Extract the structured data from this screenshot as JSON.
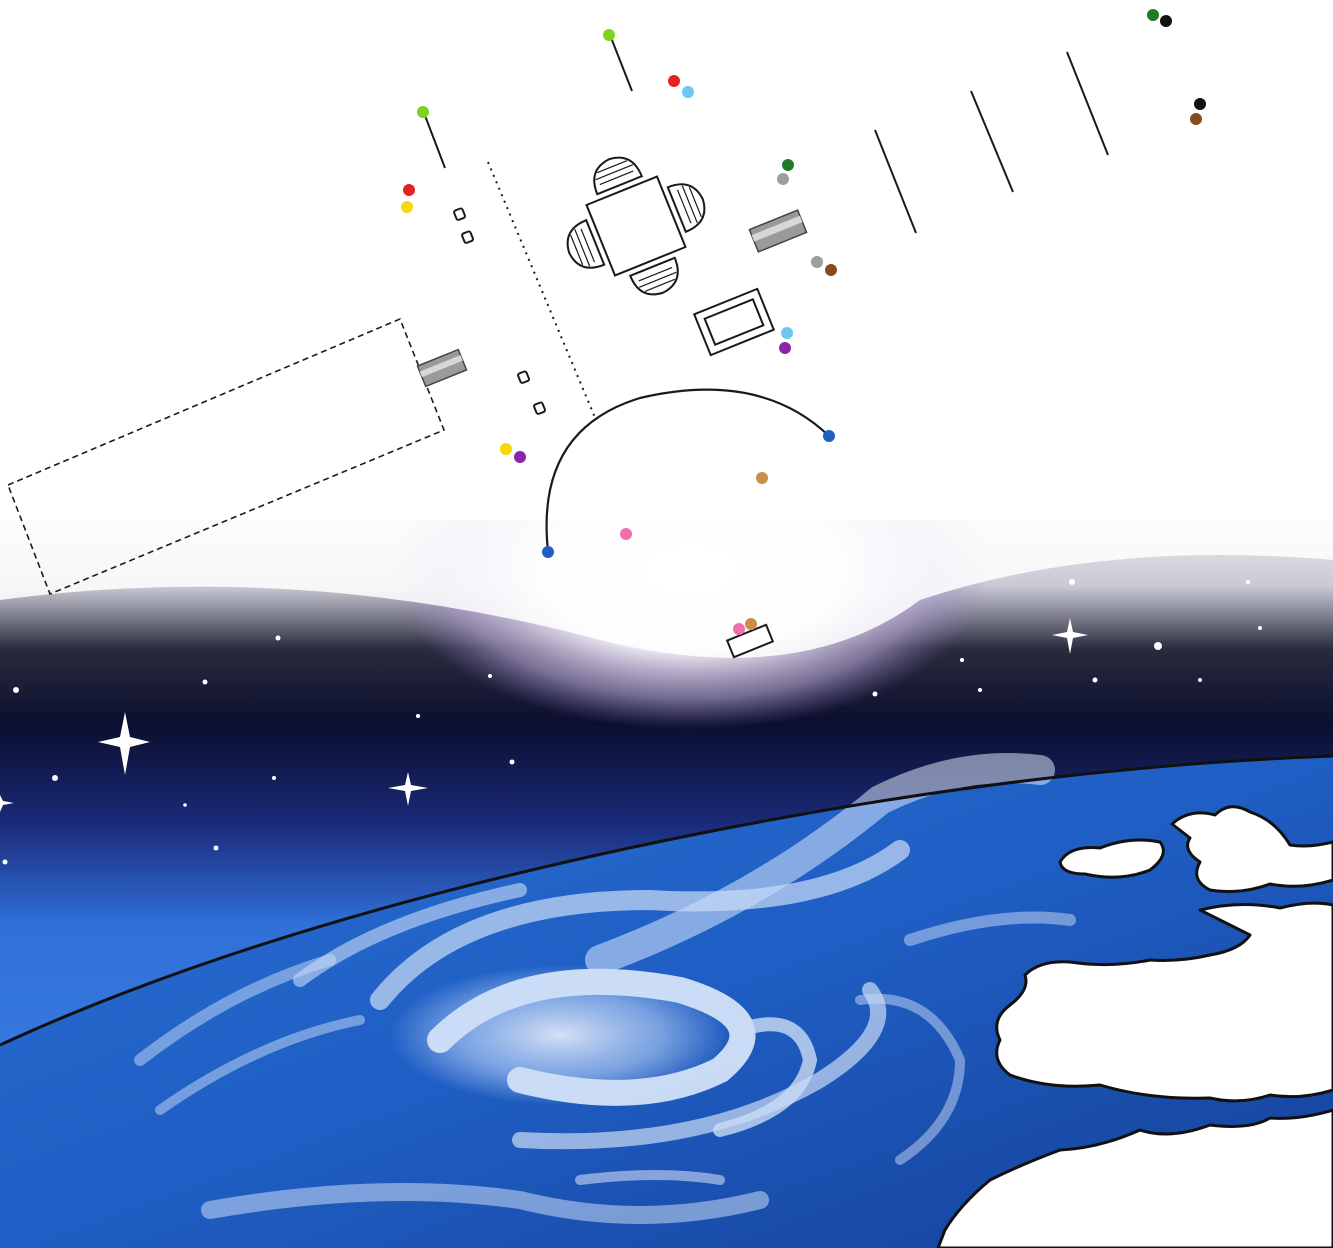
{
  "colors": {
    "background": "#ffffff",
    "ink": "#1a1a1a",
    "space_dark": "#0b0f2e",
    "space_purple": "#5b4a8a",
    "ocean": "#1e5fc0",
    "ocean_deep": "#123f8f",
    "clouds": "#e8f2ff",
    "land": "#ffffff",
    "marker_palette": [
      "#7ed321",
      "#e52421",
      "#f5d90a",
      "#6ec6f2",
      "#1f7a2a",
      "#111111",
      "#9e9e9e",
      "#8b4a1c",
      "#8e24aa",
      "#1e5fc0",
      "#c8904a",
      "#f06eb0"
    ]
  },
  "icons": {
    "table_with_chairs": "table-with-four-chairs-icon",
    "pipe": "gray-pipe-icon",
    "screen": "screen-frame-icon",
    "small_box": "small-box-icon",
    "dashed_area": "dashed-rectangle-icon",
    "arc": "curved-path-icon",
    "stars": "star-icon",
    "earth": "earth-icon"
  }
}
